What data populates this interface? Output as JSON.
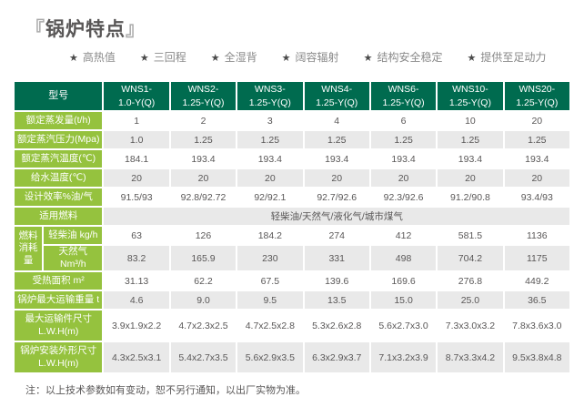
{
  "title": {
    "bracket_left": "『",
    "text": "锅炉特点",
    "bracket_right": "』"
  },
  "star_icon": "★",
  "features": [
    "高热值",
    "三回程",
    "全湿背",
    "阔容辐射",
    "结构安全稳定",
    "提供至足动力"
  ],
  "colors": {
    "header_green": "#006b4f",
    "label_green": "#95c23e",
    "row_shade": "#e9e9e9",
    "text_dark": "#595757"
  },
  "table": {
    "corner_label": "型号",
    "models": [
      "WNS1-\n1.0-Y(Q)",
      "WNS2-\n1.25-Y(Q)",
      "WNS3-\n1.25-Y(Q)",
      "WNS4-\n1.25-Y(Q)",
      "WNS6-\n1.25-Y(Q)",
      "WNS10-\n1.25-Y(Q)",
      "WNS20-\n1.25-Y(Q)"
    ],
    "rows": [
      {
        "label": "额定蒸发量(t/h)",
        "shade": false,
        "values": [
          "1",
          "2",
          "3",
          "4",
          "6",
          "10",
          "20"
        ]
      },
      {
        "label": "额定蒸汽压力(Mpa)",
        "shade": true,
        "values": [
          "1.0",
          "1.25",
          "1.25",
          "1.25",
          "1.25",
          "1.25",
          "1.25"
        ]
      },
      {
        "label": "额定蒸汽温度(℃)",
        "shade": false,
        "values": [
          "184.1",
          "193.4",
          "193.4",
          "193.4",
          "193.4",
          "193.4",
          "193.4"
        ]
      },
      {
        "label": "给水温度(℃)",
        "shade": true,
        "values": [
          "20",
          "20",
          "20",
          "20",
          "20",
          "20",
          "20"
        ]
      },
      {
        "label": "设计效率%油/气",
        "shade": false,
        "values": [
          "91.5/93",
          "92.8/92.72",
          "92/92.1",
          "92.7/92.6",
          "92.3/92.6",
          "91.2/90.8",
          "93.4/93"
        ]
      },
      {
        "label": "适用燃料",
        "shade": true,
        "merged": "轻柴油/天然气/液化气/城市煤气"
      },
      {
        "group": "燃料\n消耗量",
        "label": "轻柴油 kg/h",
        "shade": false,
        "values": [
          "63",
          "126",
          "184.2",
          "274",
          "412",
          "581.5",
          "1136"
        ]
      },
      {
        "inGroup": true,
        "label": "天然气 Nm³/h",
        "shade": true,
        "values": [
          "83.2",
          "165.9",
          "230",
          "331",
          "498",
          "704.2",
          "1175"
        ]
      },
      {
        "label": "受热面积 m²",
        "shade": false,
        "values": [
          "31.13",
          "62.2",
          "67.5",
          "139.6",
          "169.6",
          "276.8",
          "449.2"
        ]
      },
      {
        "label": "锅炉最大运输重量 t",
        "shade": true,
        "values": [
          "4.6",
          "9.0",
          "9.5",
          "13.5",
          "15.0",
          "25.0",
          "36.5"
        ]
      },
      {
        "label": "最大运输件尺寸\nL.W.H(m)",
        "shade": false,
        "tall": true,
        "values": [
          "3.9x1.9x2.2",
          "4.7x2.3x2.5",
          "4.7x2.5x2.8",
          "5.3x2.6x2.8",
          "5.6x2.7x3.0",
          "7.3x3.0x3.2",
          "7.8x3.6x3.0"
        ]
      },
      {
        "label": "锅炉安装外形尺寸\nL.W.H(m)",
        "shade": true,
        "tall": true,
        "values": [
          "4.3x2.5x3.1",
          "5.4x2.7x3.5",
          "5.6x2.9x3.5",
          "6.3x2.9x3.7",
          "7.1x3.2x3.9",
          "8.7x3.3x4.2",
          "9.5x3.8x4.8"
        ]
      }
    ]
  },
  "note": "注：以上技术参数如有变动，恕不另行通知，以出厂实物为准。"
}
